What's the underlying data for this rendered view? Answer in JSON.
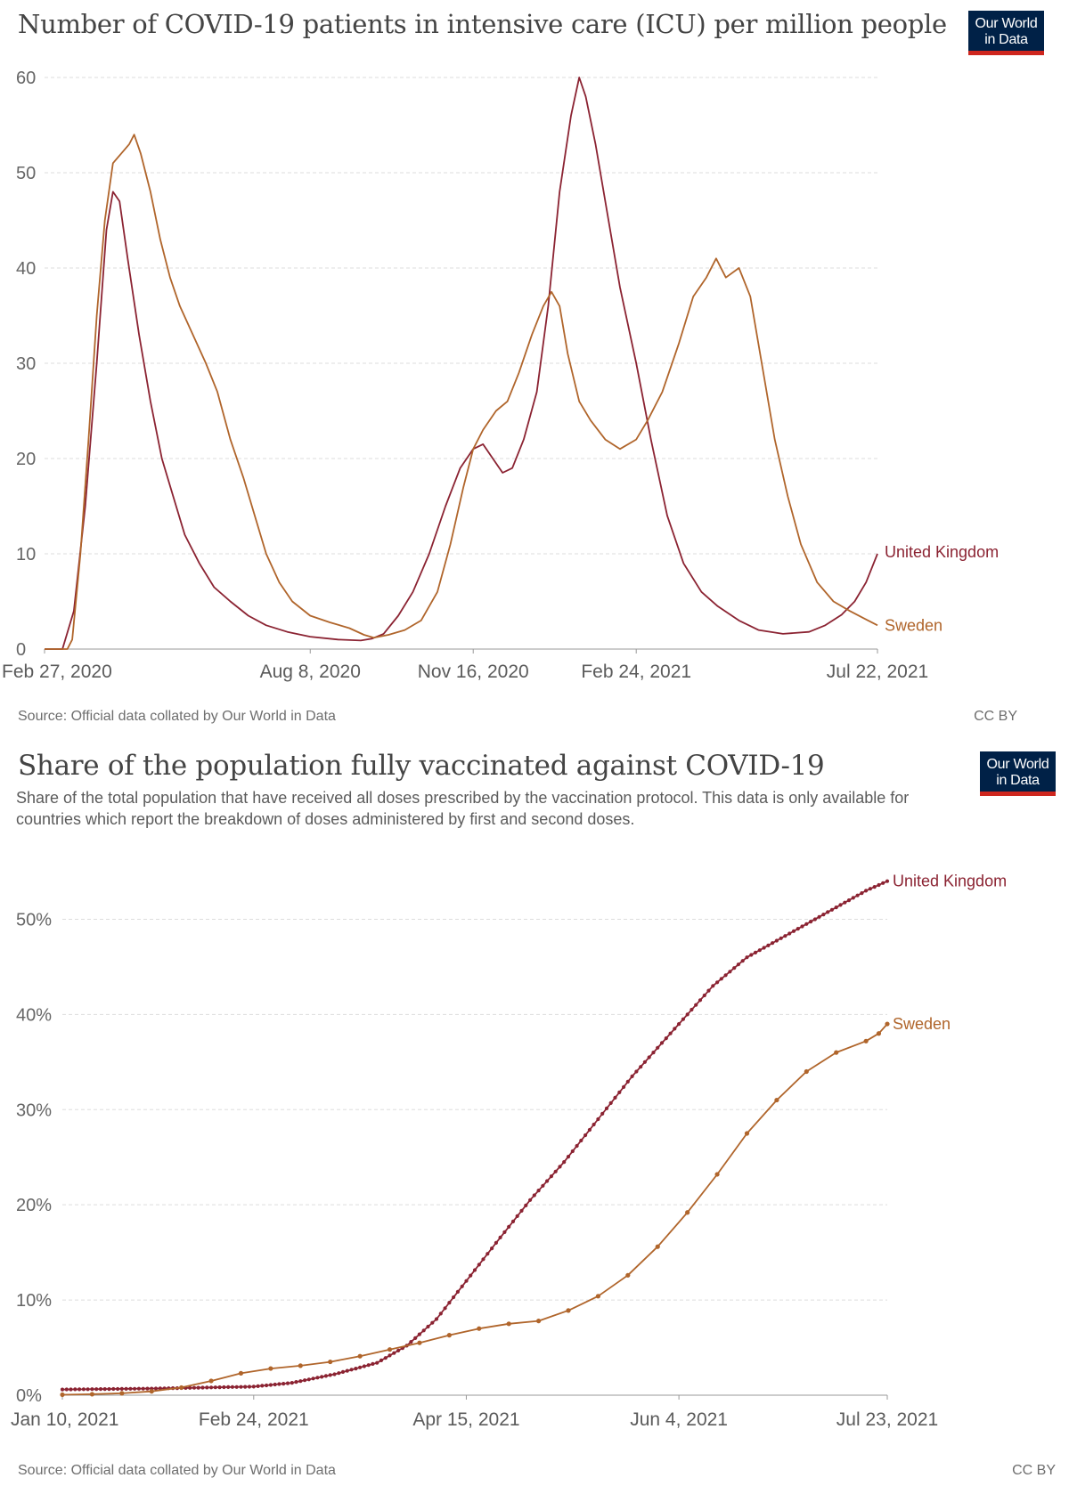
{
  "logo": {
    "line1": "Our World",
    "line2": "in Data"
  },
  "chart_data": [
    {
      "type": "line",
      "title": "Number of COVID-19 patients in intensive care (ICU) per million people",
      "source": "Source: Official data collated by Our World in Data",
      "license": "CC BY",
      "ylim": [
        0,
        60
      ],
      "y_ticks": [
        0,
        10,
        20,
        30,
        40,
        50,
        60
      ],
      "y_tick_labels": [
        "0",
        "10",
        "20",
        "30",
        "40",
        "50",
        "60"
      ],
      "x_ticks": [
        "2020-02-27",
        "2020-08-08",
        "2020-11-16",
        "2021-02-24",
        "2021-07-22"
      ],
      "x_tick_labels": [
        "Feb 27, 2020",
        "Aug 8, 2020",
        "Nov 16, 2020",
        "Feb 24, 2021",
        "Jul 22, 2021"
      ],
      "grid": true,
      "series": [
        {
          "name": "United Kingdom",
          "color": "#8b2332",
          "points": [
            [
              "2020-02-27",
              0
            ],
            [
              "2020-03-09",
              0
            ],
            [
              "2020-03-16",
              4
            ],
            [
              "2020-03-23",
              15
            ],
            [
              "2020-03-30",
              30
            ],
            [
              "2020-04-05",
              44
            ],
            [
              "2020-04-09",
              48
            ],
            [
              "2020-04-13",
              47
            ],
            [
              "2020-04-18",
              41
            ],
            [
              "2020-04-25",
              33
            ],
            [
              "2020-05-02",
              26
            ],
            [
              "2020-05-09",
              20
            ],
            [
              "2020-05-16",
              16
            ],
            [
              "2020-05-23",
              12
            ],
            [
              "2020-06-01",
              9
            ],
            [
              "2020-06-10",
              6.5
            ],
            [
              "2020-06-20",
              5
            ],
            [
              "2020-07-01",
              3.5
            ],
            [
              "2020-07-12",
              2.5
            ],
            [
              "2020-07-25",
              1.8
            ],
            [
              "2020-08-08",
              1.3
            ],
            [
              "2020-08-25",
              1.0
            ],
            [
              "2020-09-08",
              0.9
            ],
            [
              "2020-09-15",
              1.1
            ],
            [
              "2020-09-22",
              1.6
            ],
            [
              "2020-10-01",
              3.5
            ],
            [
              "2020-10-10",
              6
            ],
            [
              "2020-10-20",
              10
            ],
            [
              "2020-10-30",
              15
            ],
            [
              "2020-11-08",
              19
            ],
            [
              "2020-11-16",
              21
            ],
            [
              "2020-11-22",
              21.5
            ],
            [
              "2020-11-28",
              20
            ],
            [
              "2020-12-04",
              18.5
            ],
            [
              "2020-12-10",
              19
            ],
            [
              "2020-12-17",
              22
            ],
            [
              "2020-12-25",
              27
            ],
            [
              "2021-01-01",
              36
            ],
            [
              "2021-01-08",
              48
            ],
            [
              "2021-01-15",
              56
            ],
            [
              "2021-01-20",
              60
            ],
            [
              "2021-01-24",
              58
            ],
            [
              "2021-01-30",
              53
            ],
            [
              "2021-02-07",
              45
            ],
            [
              "2021-02-14",
              38
            ],
            [
              "2021-02-24",
              30
            ],
            [
              "2021-03-05",
              22
            ],
            [
              "2021-03-15",
              14
            ],
            [
              "2021-03-25",
              9
            ],
            [
              "2021-04-05",
              6
            ],
            [
              "2021-04-15",
              4.5
            ],
            [
              "2021-04-28",
              3
            ],
            [
              "2021-05-10",
              2
            ],
            [
              "2021-05-25",
              1.6
            ],
            [
              "2021-06-10",
              1.8
            ],
            [
              "2021-06-20",
              2.5
            ],
            [
              "2021-06-30",
              3.6
            ],
            [
              "2021-07-08",
              5
            ],
            [
              "2021-07-15",
              7
            ],
            [
              "2021-07-22",
              10
            ]
          ]
        },
        {
          "name": "Sweden",
          "color": "#b0652b",
          "points": [
            [
              "2020-02-27",
              0
            ],
            [
              "2020-03-12",
              0
            ],
            [
              "2020-03-15",
              1
            ],
            [
              "2020-03-20",
              10
            ],
            [
              "2020-03-25",
              22
            ],
            [
              "2020-03-30",
              35
            ],
            [
              "2020-04-04",
              45
            ],
            [
              "2020-04-09",
              51
            ],
            [
              "2020-04-14",
              52
            ],
            [
              "2020-04-19",
              53
            ],
            [
              "2020-04-22",
              54
            ],
            [
              "2020-04-26",
              52
            ],
            [
              "2020-05-02",
              48
            ],
            [
              "2020-05-08",
              43
            ],
            [
              "2020-05-14",
              39
            ],
            [
              "2020-05-20",
              36
            ],
            [
              "2020-05-28",
              33
            ],
            [
              "2020-06-05",
              30
            ],
            [
              "2020-06-12",
              27
            ],
            [
              "2020-06-20",
              22
            ],
            [
              "2020-06-28",
              18
            ],
            [
              "2020-07-05",
              14
            ],
            [
              "2020-07-12",
              10
            ],
            [
              "2020-07-20",
              7
            ],
            [
              "2020-07-28",
              5
            ],
            [
              "2020-08-08",
              3.5
            ],
            [
              "2020-08-20",
              2.8
            ],
            [
              "2020-09-01",
              2.2
            ],
            [
              "2020-09-10",
              1.5
            ],
            [
              "2020-09-16",
              1.2
            ],
            [
              "2020-09-25",
              1.5
            ],
            [
              "2020-10-05",
              2
            ],
            [
              "2020-10-15",
              3
            ],
            [
              "2020-10-25",
              6
            ],
            [
              "2020-11-02",
              11
            ],
            [
              "2020-11-10",
              17
            ],
            [
              "2020-11-16",
              21
            ],
            [
              "2020-11-22",
              23
            ],
            [
              "2020-11-30",
              25
            ],
            [
              "2020-12-07",
              26
            ],
            [
              "2020-12-14",
              29
            ],
            [
              "2020-12-22",
              33
            ],
            [
              "2020-12-29",
              36
            ],
            [
              "2021-01-03",
              37.5
            ],
            [
              "2021-01-08",
              36
            ],
            [
              "2021-01-13",
              31
            ],
            [
              "2021-01-20",
              26
            ],
            [
              "2021-01-27",
              24
            ],
            [
              "2021-02-05",
              22
            ],
            [
              "2021-02-14",
              21
            ],
            [
              "2021-02-24",
              22
            ],
            [
              "2021-03-03",
              24
            ],
            [
              "2021-03-12",
              27
            ],
            [
              "2021-03-22",
              32
            ],
            [
              "2021-03-31",
              37
            ],
            [
              "2021-04-08",
              39
            ],
            [
              "2021-04-14",
              41
            ],
            [
              "2021-04-20",
              39
            ],
            [
              "2021-04-28",
              40
            ],
            [
              "2021-05-05",
              37
            ],
            [
              "2021-05-12",
              30
            ],
            [
              "2021-05-20",
              22
            ],
            [
              "2021-05-28",
              16
            ],
            [
              "2021-06-05",
              11
            ],
            [
              "2021-06-15",
              7
            ],
            [
              "2021-06-25",
              5
            ],
            [
              "2021-07-05",
              4
            ],
            [
              "2021-07-14",
              3.2
            ],
            [
              "2021-07-22",
              2.5
            ]
          ]
        }
      ]
    },
    {
      "type": "line",
      "title": "Share of the population fully vaccinated against COVID-19",
      "subtitle": "Share of the total population that have received all doses prescribed by the vaccination protocol. This data is only available for countries which report the breakdown of doses administered by first and second doses.",
      "source": "Source: Official data collated by Our World in Data",
      "license": "CC BY",
      "ylim": [
        0,
        55
      ],
      "y_ticks": [
        0,
        10,
        20,
        30,
        40,
        50
      ],
      "y_tick_labels": [
        "0%",
        "10%",
        "20%",
        "30%",
        "40%",
        "50%"
      ],
      "x_ticks": [
        "2021-01-10",
        "2021-02-24",
        "2021-04-15",
        "2021-06-04",
        "2021-07-23"
      ],
      "x_tick_labels": [
        "Jan 10, 2021",
        "Feb 24, 2021",
        "Apr 15, 2021",
        "Jun 4, 2021",
        "Jul 23, 2021"
      ],
      "grid": true,
      "series": [
        {
          "name": "United Kingdom",
          "color": "#8b2332",
          "daily_markers": true,
          "points": [
            [
              "2021-01-10",
              0.6
            ],
            [
              "2021-02-01",
              0.7
            ],
            [
              "2021-02-24",
              0.9
            ],
            [
              "2021-03-05",
              1.3
            ],
            [
              "2021-03-15",
              2.2
            ],
            [
              "2021-03-25",
              3.4
            ],
            [
              "2021-04-01",
              5.2
            ],
            [
              "2021-04-08",
              8
            ],
            [
              "2021-04-15",
              12
            ],
            [
              "2021-04-22",
              16
            ],
            [
              "2021-04-30",
              20.5
            ],
            [
              "2021-05-08",
              24.5
            ],
            [
              "2021-05-16",
              29
            ],
            [
              "2021-05-24",
              33.5
            ],
            [
              "2021-06-04",
              39
            ],
            [
              "2021-06-12",
              43
            ],
            [
              "2021-06-20",
              46
            ],
            [
              "2021-06-30",
              48.5
            ],
            [
              "2021-07-10",
              51
            ],
            [
              "2021-07-18",
              53
            ],
            [
              "2021-07-23",
              54
            ]
          ]
        },
        {
          "name": "Sweden",
          "color": "#b0652b",
          "daily_markers": false,
          "points": [
            [
              "2021-01-10",
              0.05
            ],
            [
              "2021-01-17",
              0.1
            ],
            [
              "2021-01-24",
              0.2
            ],
            [
              "2021-01-31",
              0.4
            ],
            [
              "2021-02-07",
              0.8
            ],
            [
              "2021-02-14",
              1.5
            ],
            [
              "2021-02-21",
              2.3
            ],
            [
              "2021-02-28",
              2.8
            ],
            [
              "2021-03-07",
              3.1
            ],
            [
              "2021-03-14",
              3.5
            ],
            [
              "2021-03-21",
              4.1
            ],
            [
              "2021-03-28",
              4.8
            ],
            [
              "2021-04-04",
              5.5
            ],
            [
              "2021-04-11",
              6.3
            ],
            [
              "2021-04-18",
              7.0
            ],
            [
              "2021-04-25",
              7.5
            ],
            [
              "2021-05-02",
              7.8
            ],
            [
              "2021-05-09",
              8.9
            ],
            [
              "2021-05-16",
              10.4
            ],
            [
              "2021-05-23",
              12.6
            ],
            [
              "2021-05-30",
              15.6
            ],
            [
              "2021-06-06",
              19.2
            ],
            [
              "2021-06-13",
              23.2
            ],
            [
              "2021-06-20",
              27.5
            ],
            [
              "2021-06-27",
              31
            ],
            [
              "2021-07-04",
              34
            ],
            [
              "2021-07-11",
              36
            ],
            [
              "2021-07-18",
              37.2
            ],
            [
              "2021-07-21",
              38
            ],
            [
              "2021-07-23",
              39
            ]
          ]
        }
      ]
    }
  ]
}
